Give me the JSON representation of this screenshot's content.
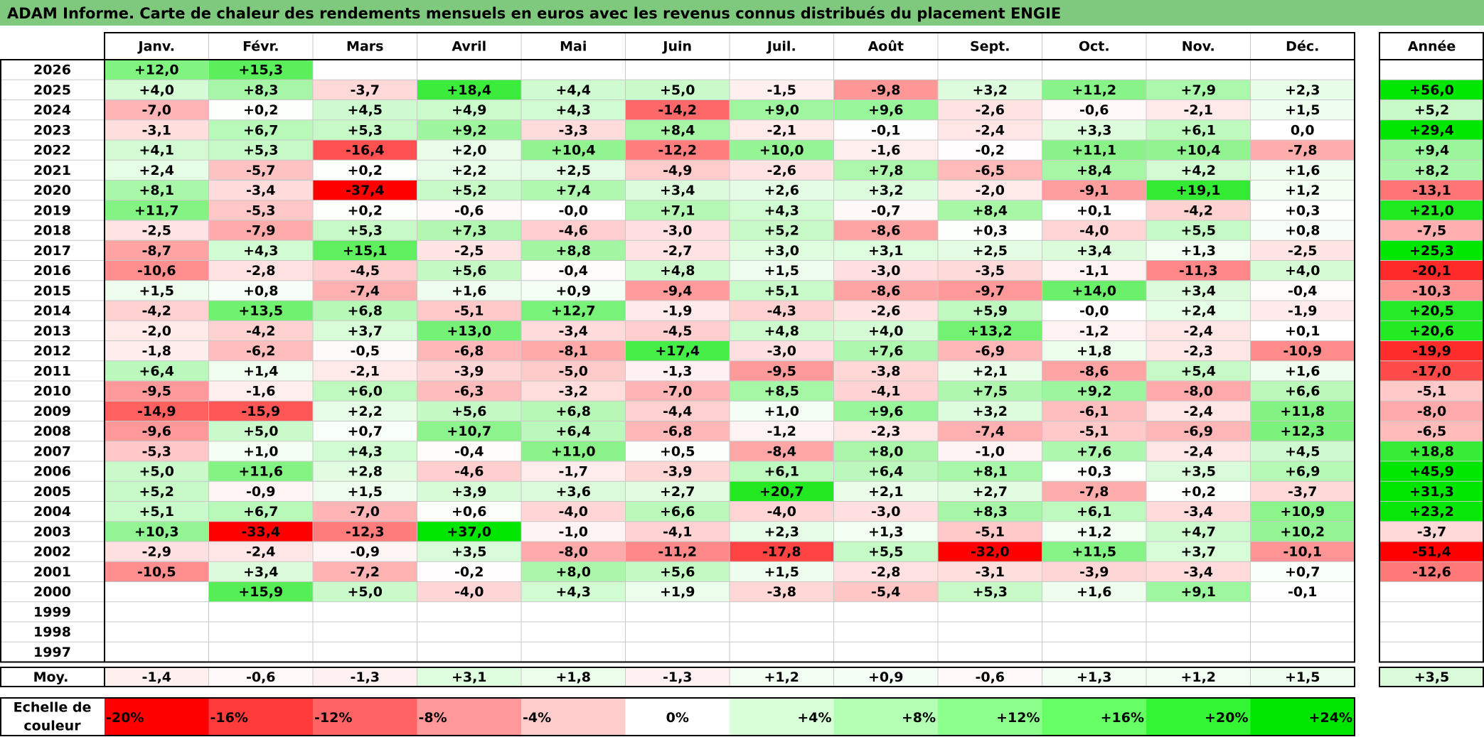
{
  "title": "ADAM Informe. Carte de chaleur des rendements mensuels en euros avec les revenus connus distribués du placement ENGIE",
  "chart_data": {
    "type": "heatmap",
    "title": "ADAM Informe. Carte de chaleur des rendements mensuels en euros avec les revenus connus distribués du placement ENGIE",
    "columns": [
      "Janv.",
      "Févr.",
      "Mars",
      "Avril",
      "Mai",
      "Juin",
      "Juil.",
      "Août",
      "Sept.",
      "Oct.",
      "Nov.",
      "Déc."
    ],
    "annual_header": "Année",
    "rows": [
      {
        "year": "2026",
        "values": [
          "+12,0",
          "+15,3",
          "",
          "",
          "",
          "",
          "",
          "",
          "",
          "",
          "",
          ""
        ],
        "annual": ""
      },
      {
        "year": "2025",
        "values": [
          "+4,0",
          "+8,3",
          "-3,7",
          "+18,4",
          "+4,4",
          "+5,0",
          "-1,5",
          "-9,8",
          "+3,2",
          "+11,2",
          "+7,9",
          "+2,3"
        ],
        "annual": "+56,0"
      },
      {
        "year": "2024",
        "values": [
          "-7,0",
          "+0,2",
          "+4,5",
          "+4,9",
          "+4,3",
          "-14,2",
          "+9,0",
          "+9,6",
          "-2,6",
          "-0,6",
          "-2,1",
          "+1,5"
        ],
        "annual": "+5,2"
      },
      {
        "year": "2023",
        "values": [
          "-3,1",
          "+6,7",
          "+5,3",
          "+9,2",
          "-3,3",
          "+8,4",
          "-2,1",
          "-0,1",
          "-2,4",
          "+3,3",
          "+6,1",
          "0,0"
        ],
        "annual": "+29,4"
      },
      {
        "year": "2022",
        "values": [
          "+4,1",
          "+5,3",
          "-16,4",
          "+2,0",
          "+10,4",
          "-12,2",
          "+10,0",
          "-1,6",
          "-0,2",
          "+11,1",
          "+10,4",
          "-7,8"
        ],
        "annual": "+9,4"
      },
      {
        "year": "2021",
        "values": [
          "+2,4",
          "-5,7",
          "+0,2",
          "+2,2",
          "+2,5",
          "-4,9",
          "-2,6",
          "+7,8",
          "-6,5",
          "+8,4",
          "+4,2",
          "+1,6"
        ],
        "annual": "+8,2"
      },
      {
        "year": "2020",
        "values": [
          "+8,1",
          "-3,4",
          "-37,4",
          "+5,2",
          "+7,4",
          "+3,4",
          "+2,6",
          "+3,2",
          "-2,0",
          "-9,1",
          "+19,1",
          "+1,2"
        ],
        "annual": "-13,1"
      },
      {
        "year": "2019",
        "values": [
          "+11,7",
          "-5,3",
          "+0,2",
          "-0,6",
          "-0,0",
          "+7,1",
          "+4,3",
          "-0,7",
          "+8,4",
          "+0,1",
          "-4,2",
          "+0,3"
        ],
        "annual": "+21,0"
      },
      {
        "year": "2018",
        "values": [
          "-2,5",
          "-7,9",
          "+5,3",
          "+7,3",
          "-4,6",
          "-3,0",
          "+5,2",
          "-8,6",
          "+0,3",
          "-4,0",
          "+5,5",
          "+0,8"
        ],
        "annual": "-7,5"
      },
      {
        "year": "2017",
        "values": [
          "-8,7",
          "+4,3",
          "+15,1",
          "-2,5",
          "+8,8",
          "-2,7",
          "+3,0",
          "+3,1",
          "+2,5",
          "+3,4",
          "+1,3",
          "-2,5"
        ],
        "annual": "+25,3"
      },
      {
        "year": "2016",
        "values": [
          "-10,6",
          "-2,8",
          "-4,5",
          "+5,6",
          "-0,4",
          "+4,8",
          "+1,5",
          "-3,0",
          "-3,5",
          "-1,1",
          "-11,3",
          "+4,0"
        ],
        "annual": "-20,1"
      },
      {
        "year": "2015",
        "values": [
          "+1,5",
          "+0,8",
          "-7,4",
          "+1,6",
          "+0,9",
          "-9,4",
          "+5,1",
          "-8,6",
          "-9,7",
          "+14,0",
          "+3,4",
          "-0,4"
        ],
        "annual": "-10,3"
      },
      {
        "year": "2014",
        "values": [
          "-4,2",
          "+13,5",
          "+6,8",
          "-5,1",
          "+12,7",
          "-1,9",
          "-4,3",
          "-2,6",
          "+5,9",
          "-0,0",
          "+2,4",
          "-1,9"
        ],
        "annual": "+20,5"
      },
      {
        "year": "2013",
        "values": [
          "-2,0",
          "-4,2",
          "+3,7",
          "+13,0",
          "-3,4",
          "-4,5",
          "+4,8",
          "+4,0",
          "+13,2",
          "-1,2",
          "-2,4",
          "+0,1"
        ],
        "annual": "+20,6"
      },
      {
        "year": "2012",
        "values": [
          "-1,8",
          "-6,2",
          "-0,5",
          "-6,8",
          "-8,1",
          "+17,4",
          "-3,0",
          "+7,6",
          "-6,9",
          "+1,8",
          "-2,3",
          "-10,9"
        ],
        "annual": "-19,9"
      },
      {
        "year": "2011",
        "values": [
          "+6,4",
          "+1,4",
          "-2,1",
          "-3,9",
          "-5,0",
          "-1,3",
          "-9,5",
          "-3,8",
          "+2,1",
          "-8,6",
          "+5,4",
          "+1,6"
        ],
        "annual": "-17,0"
      },
      {
        "year": "2010",
        "values": [
          "-9,5",
          "-1,6",
          "+6,0",
          "-6,3",
          "-3,2",
          "-7,0",
          "+8,5",
          "-4,1",
          "+7,5",
          "+9,2",
          "-8,0",
          "+6,6"
        ],
        "annual": "-5,1"
      },
      {
        "year": "2009",
        "values": [
          "-14,9",
          "-15,9",
          "+2,2",
          "+5,6",
          "+6,8",
          "-4,4",
          "+1,0",
          "+9,6",
          "+3,2",
          "-6,1",
          "-2,4",
          "+11,8"
        ],
        "annual": "-8,0"
      },
      {
        "year": "2008",
        "values": [
          "-9,6",
          "+5,0",
          "+0,7",
          "+10,7",
          "+6,4",
          "-6,8",
          "-1,2",
          "-2,3",
          "-7,4",
          "-5,1",
          "-6,9",
          "+12,3"
        ],
        "annual": "-6,5"
      },
      {
        "year": "2007",
        "values": [
          "-5,3",
          "+1,0",
          "+4,3",
          "-0,4",
          "+11,0",
          "+0,5",
          "-8,4",
          "+8,0",
          "-1,0",
          "+7,6",
          "-2,4",
          "+4,5"
        ],
        "annual": "+18,8"
      },
      {
        "year": "2006",
        "values": [
          "+5,0",
          "+11,6",
          "+2,8",
          "-4,6",
          "-1,7",
          "-3,9",
          "+6,1",
          "+6,4",
          "+8,1",
          "+0,3",
          "+3,5",
          "+6,9"
        ],
        "annual": "+45,9"
      },
      {
        "year": "2005",
        "values": [
          "+5,2",
          "-0,9",
          "+1,5",
          "+3,9",
          "+3,6",
          "+2,7",
          "+20,7",
          "+2,1",
          "+2,7",
          "-7,8",
          "+0,2",
          "-3,7"
        ],
        "annual": "+31,3"
      },
      {
        "year": "2004",
        "values": [
          "+5,1",
          "+6,7",
          "-7,0",
          "+0,6",
          "-4,0",
          "+6,6",
          "-4,0",
          "-3,0",
          "+8,3",
          "+6,1",
          "-3,4",
          "+10,9"
        ],
        "annual": "+23,2"
      },
      {
        "year": "2003",
        "values": [
          "+10,3",
          "-33,4",
          "-12,3",
          "+37,0",
          "-1,0",
          "-4,1",
          "+2,3",
          "+1,3",
          "-5,1",
          "+1,2",
          "+4,7",
          "+10,2"
        ],
        "annual": "-3,7"
      },
      {
        "year": "2002",
        "values": [
          "-2,9",
          "-2,4",
          "-0,9",
          "+3,5",
          "-8,0",
          "-11,2",
          "-17,8",
          "+5,5",
          "-32,0",
          "+11,5",
          "+3,7",
          "-10,1"
        ],
        "annual": "-51,4"
      },
      {
        "year": "2001",
        "values": [
          "-10,5",
          "+3,4",
          "-7,2",
          "-0,2",
          "+8,0",
          "+5,6",
          "+1,5",
          "-2,8",
          "-3,1",
          "-3,9",
          "-3,4",
          "+0,7"
        ],
        "annual": "-12,6"
      },
      {
        "year": "2000",
        "values": [
          "",
          "+15,9",
          "+5,0",
          "-4,0",
          "+4,3",
          "+1,9",
          "-3,8",
          "-5,4",
          "+5,3",
          "+1,6",
          "+9,1",
          "-0,1"
        ],
        "annual": ""
      },
      {
        "year": "1999",
        "values": [
          "",
          "",
          "",
          "",
          "",
          "",
          "",
          "",
          "",
          "",
          "",
          ""
        ],
        "annual": ""
      },
      {
        "year": "1998",
        "values": [
          "",
          "",
          "",
          "",
          "",
          "",
          "",
          "",
          "",
          "",
          "",
          ""
        ],
        "annual": ""
      },
      {
        "year": "1997",
        "values": [
          "",
          "",
          "",
          "",
          "",
          "",
          "",
          "",
          "",
          "",
          "",
          ""
        ],
        "annual": ""
      }
    ],
    "average": {
      "label": "Moy.",
      "values": [
        "-1,4",
        "-0,6",
        "-1,3",
        "+3,1",
        "+1,8",
        "-1,3",
        "+1,2",
        "+0,9",
        "-0,6",
        "+1,3",
        "+1,2",
        "+1,5"
      ],
      "annual": "+3,5"
    },
    "color_scale": {
      "label_line1": "Echelle de",
      "label_line2": "couleur",
      "steps": [
        {
          "label": "-20%",
          "value": -20,
          "color": "#ff0000"
        },
        {
          "label": "-16%",
          "value": -16,
          "color": "#ff3a3a"
        },
        {
          "label": "-12%",
          "value": -12,
          "color": "#ff6363"
        },
        {
          "label": "-8%",
          "value": -8,
          "color": "#ff9999"
        },
        {
          "label": "-4%",
          "value": -4,
          "color": "#ffcccc"
        },
        {
          "label": "0%",
          "value": 0,
          "color": "#ffffff"
        },
        {
          "label": "+4%",
          "value": 4,
          "color": "#d9ffd9"
        },
        {
          "label": "+8%",
          "value": 8,
          "color": "#b3ffb3"
        },
        {
          "label": "+12%",
          "value": 12,
          "color": "#8cff8c"
        },
        {
          "label": "+16%",
          "value": 16,
          "color": "#66ff66"
        },
        {
          "label": "+20%",
          "value": 20,
          "color": "#33f533"
        },
        {
          "label": "+24%",
          "value": 24,
          "color": "#00e600"
        }
      ]
    },
    "colors": {
      "negative_max": "#ff0000",
      "zero": "#ffffff",
      "positive_max": "#00e600",
      "title_bar": "#7ec97e"
    }
  }
}
